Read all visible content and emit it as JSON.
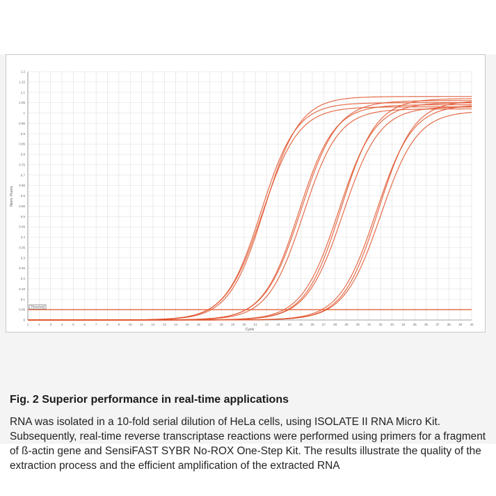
{
  "figure": {
    "caption_title": "Fig. 2 Superior performance in real-time applications",
    "caption_body": "RNA was isolated in a 10-fold serial dilution of HeLa cells, using ISOLATE II RNA Micro Kit. Subsequently, real-time reverse transcriptase reactions were performed using primers for a fragment of ß-actin gene and SensiFAST SYBR No-ROX One-Step Kit. The results illustrate the quality of the extraction process and the efficient amplification of the extracted RNA"
  },
  "chart_data": {
    "type": "line",
    "xlabel": "Cycle",
    "ylabel": "Norm. Fluoro.",
    "threshold_label": "Threshold",
    "threshold": 0.05,
    "xlim": [
      1,
      40
    ],
    "ylim": [
      0,
      1.2
    ],
    "x_ticks": [
      1,
      2,
      3,
      4,
      5,
      6,
      7,
      8,
      9,
      10,
      11,
      12,
      13,
      14,
      15,
      16,
      17,
      18,
      19,
      20,
      21,
      22,
      23,
      24,
      25,
      26,
      27,
      28,
      29,
      30,
      31,
      32,
      33,
      34,
      35,
      36,
      37,
      38,
      39,
      40
    ],
    "y_ticks": [
      "0",
      "0.05",
      "0.1",
      "0.15",
      "0.2",
      "0.25",
      "0.3",
      "0.35",
      "0.4",
      "0.45",
      "0.5",
      "0.55",
      "0.6",
      "0.65",
      "0.7",
      "0.75",
      "0.8",
      "0.85",
      "0.9",
      "0.95",
      "1",
      "1.05",
      "1.1",
      "1.15",
      "1.2"
    ],
    "grid": true,
    "line_color": "#e0522a",
    "threshold_color": "#e0522a",
    "series": [
      {
        "midpoint": 21.5,
        "slope": 1.55,
        "plateau": 1.05
      },
      {
        "midpoint": 21.6,
        "slope": 1.6,
        "plateau": 1.03
      },
      {
        "midpoint": 21.8,
        "slope": 1.55,
        "plateau": 1.08
      },
      {
        "midpoint": 24.8,
        "slope": 1.55,
        "plateau": 1.04
      },
      {
        "midpoint": 25.0,
        "slope": 1.6,
        "plateau": 1.06
      },
      {
        "midpoint": 25.2,
        "slope": 1.55,
        "plateau": 1.02
      },
      {
        "midpoint": 28.3,
        "slope": 1.6,
        "plateau": 1.05
      },
      {
        "midpoint": 28.5,
        "slope": 1.55,
        "plateau": 1.07
      },
      {
        "midpoint": 28.7,
        "slope": 1.6,
        "plateau": 1.03
      },
      {
        "midpoint": 31.6,
        "slope": 1.6,
        "plateau": 1.04
      },
      {
        "midpoint": 31.8,
        "slope": 1.55,
        "plateau": 1.06
      },
      {
        "midpoint": 32.0,
        "slope": 1.6,
        "plateau": 1.01
      }
    ]
  }
}
